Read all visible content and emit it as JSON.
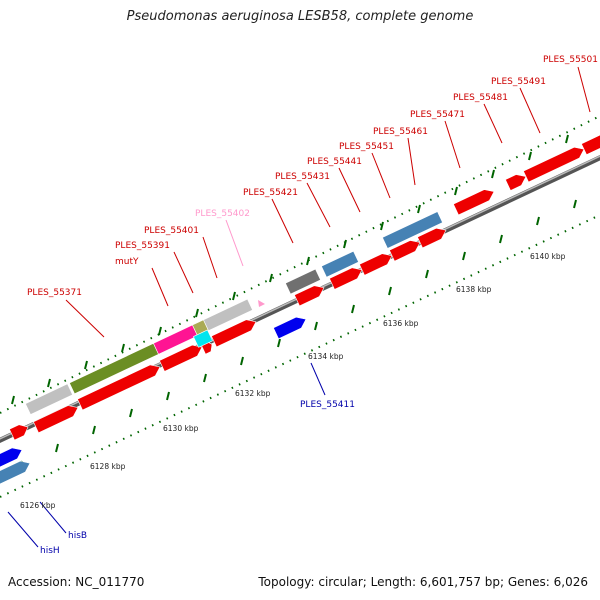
{
  "title": "Pseudomonas aeruginosa LESB58, complete genome",
  "footer": {
    "accession": "Accession: NC_011770",
    "topology": "Topology: circular; Length: 6,601,757 bp; Genes: 6,026"
  },
  "colors": {
    "cds": "#ee0000",
    "cds_grey": "#c0c0c0",
    "cds_dark": "#707070",
    "cds_steel": "#4682b4",
    "cds_olive": "#6b8e23",
    "cds_magenta": "#ff1493",
    "cds_cyan": "#00e5ee",
    "cds_blue": "#0000ee",
    "label_red": "#cc0000",
    "label_pink": "#ff99cc",
    "label_blue": "#0000aa",
    "tick_green": "#006400"
  },
  "kbp_labels": [
    "6126 kbp",
    "6128 kbp",
    "6130 kbp",
    "6132 kbp",
    "6134 kbp",
    "6136 kbp",
    "6138 kbp",
    "6140 kbp"
  ],
  "gene_labels": [
    {
      "text": "PLES_55371",
      "color": "red"
    },
    {
      "text": "mutY",
      "color": "red"
    },
    {
      "text": "PLES_55391",
      "color": "red"
    },
    {
      "text": "PLES_55401",
      "color": "red"
    },
    {
      "text": "PLES_55402",
      "color": "pink"
    },
    {
      "text": "PLES_55421",
      "color": "red"
    },
    {
      "text": "PLES_55431",
      "color": "red"
    },
    {
      "text": "PLES_55441",
      "color": "red"
    },
    {
      "text": "PLES_55451",
      "color": "red"
    },
    {
      "text": "PLES_55461",
      "color": "red"
    },
    {
      "text": "PLES_55471",
      "color": "red"
    },
    {
      "text": "PLES_55481",
      "color": "red"
    },
    {
      "text": "PLES_55491",
      "color": "red"
    },
    {
      "text": "PLES_55501",
      "color": "red"
    },
    {
      "text": "PLES_55411",
      "color": "blue"
    },
    {
      "text": "hisB",
      "color": "blue"
    },
    {
      "text": "hisH",
      "color": "blue"
    }
  ]
}
